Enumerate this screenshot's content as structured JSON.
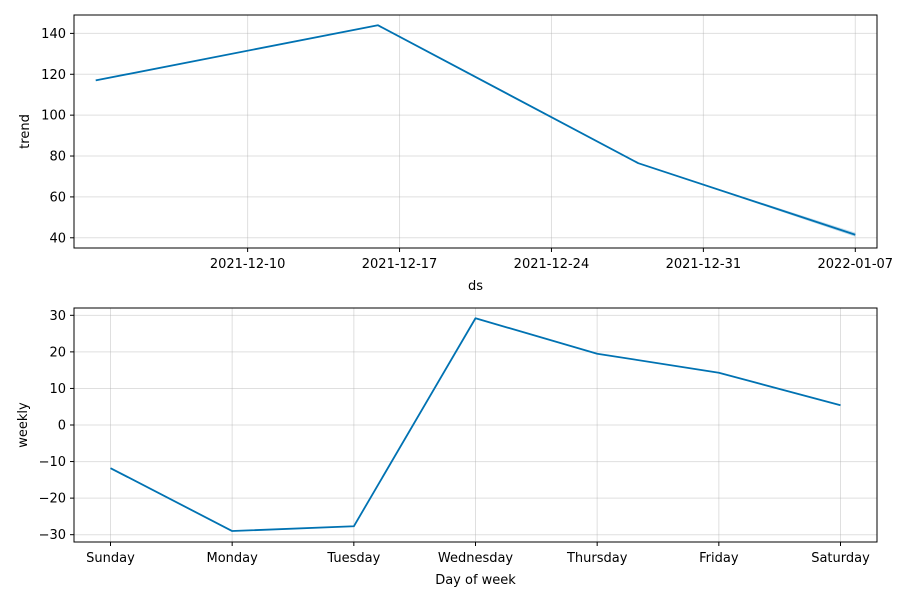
{
  "chart_data": [
    {
      "type": "line",
      "xlabel": "ds",
      "ylabel": "trend",
      "x_type": "date",
      "xlim": [
        "2021-12-02",
        "2022-01-08"
      ],
      "ylim": [
        35,
        149
      ],
      "yticks": [
        40,
        60,
        80,
        100,
        120,
        140
      ],
      "xticks": [
        "2021-12-10",
        "2021-12-17",
        "2021-12-24",
        "2021-12-31",
        "2022-01-07"
      ],
      "grid": true,
      "series": [
        {
          "color": "#0072b2",
          "x": [
            "2021-12-03",
            "2021-12-16",
            "2021-12-28",
            "2022-01-07"
          ],
          "y": [
            117,
            144,
            76.5,
            41.5
          ],
          "uncertainty": {
            "x": "2022-01-07",
            "lower": 40.5,
            "upper": 42.5
          }
        }
      ]
    },
    {
      "type": "line",
      "xlabel": "Day of week",
      "ylabel": "weekly",
      "categories": [
        "Sunday",
        "Monday",
        "Tuesday",
        "Wednesday",
        "Thursday",
        "Friday",
        "Saturday"
      ],
      "ylim": [
        -32,
        32
      ],
      "yticks": [
        -30,
        -20,
        -10,
        0,
        10,
        20,
        30
      ],
      "grid": true,
      "series": [
        {
          "color": "#0072b2",
          "values": [
            -11.8,
            -29,
            -27.7,
            29.2,
            19.5,
            14.3,
            5.4
          ]
        }
      ]
    }
  ]
}
